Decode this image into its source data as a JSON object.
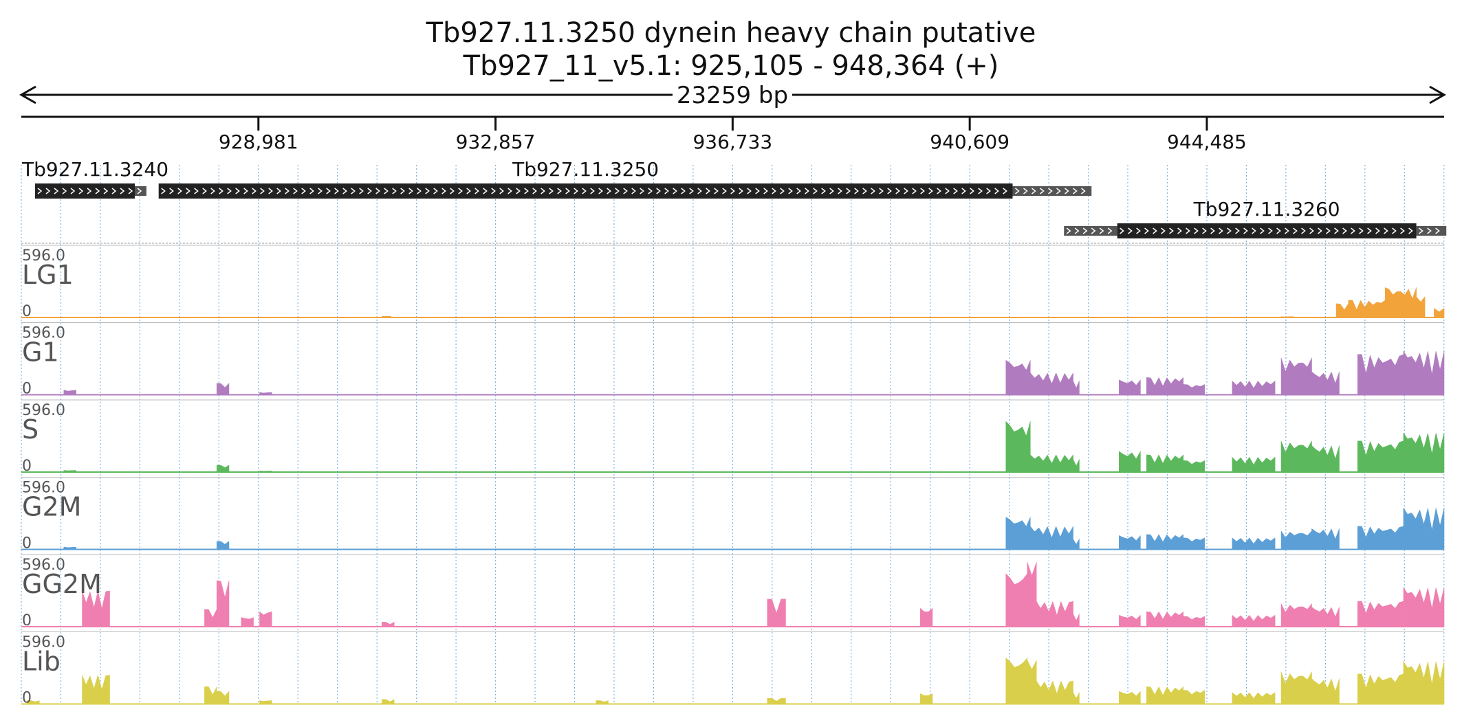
{
  "header": {
    "title_line1": "Tb927.11.3250  dynein heavy chain  putative",
    "title_line2": "Tb927_11_v5.1: 925,105 - 948,364 (+)",
    "span_label": "23259 bp"
  },
  "colors": {
    "LG1": "#f2a33a",
    "G1": "#b07cbf",
    "S": "#5cb85c",
    "G2M": "#5b9fd6",
    "GG2M": "#ef7fb0",
    "Lib": "#d9cf4a",
    "gene_body": "#222222",
    "utr": "#555555",
    "grid": "#7fb4e0"
  },
  "chart_data": {
    "type": "area",
    "genome": "Tb927_11_v5.1",
    "xlim": [
      925105,
      948364
    ],
    "x_ticks": [
      928981,
      932857,
      936733,
      940609,
      944485
    ],
    "x_tick_labels": [
      "928,981",
      "932,857",
      "936,733",
      "940,609",
      "944,485"
    ],
    "genes": [
      {
        "name": "Tb927.11.3240",
        "cds": [
          925330,
          926960
        ],
        "utr": [
          [
            926960,
            927150
          ]
        ],
        "row": 0
      },
      {
        "name": "Tb927.11.3250",
        "cds": [
          927350,
          941310
        ],
        "utr": [
          [
            941310,
            942600
          ]
        ],
        "row": 0
      },
      {
        "name": "Tb927.11.3260",
        "cds": [
          943020,
          947910
        ],
        "utr": [
          [
            942150,
            943020
          ],
          [
            947910,
            948400
          ]
        ],
        "row": 1
      }
    ],
    "tracks": [
      {
        "name": "LG1",
        "ymax_label": "596.0",
        "ymin_label": "0",
        "ylim": [
          0,
          596
        ],
        "regions": [
          [
            931000,
            931150,
            10
          ],
          [
            945700,
            945900,
            8
          ],
          [
            946600,
            946800,
            120
          ],
          [
            946800,
            947400,
            150
          ],
          [
            947400,
            947910,
            260
          ],
          [
            947910,
            948050,
            180
          ],
          [
            948200,
            948364,
            80
          ]
        ]
      },
      {
        "name": "G1",
        "ymax_label": "596.0",
        "ymin_label": "0",
        "ylim": [
          0,
          596
        ],
        "regions": [
          [
            925800,
            926000,
            40
          ],
          [
            928300,
            928500,
            100
          ],
          [
            929000,
            929200,
            20
          ],
          [
            941200,
            941600,
            300
          ],
          [
            941600,
            942300,
            190
          ],
          [
            942300,
            942400,
            120
          ],
          [
            943050,
            943400,
            130
          ],
          [
            943500,
            944100,
            150
          ],
          [
            944100,
            944450,
            90
          ],
          [
            944900,
            945600,
            120
          ],
          [
            945700,
            946200,
            320
          ],
          [
            946200,
            946650,
            200
          ],
          [
            946950,
            947700,
            350
          ],
          [
            947700,
            948364,
            380
          ]
        ]
      },
      {
        "name": "S",
        "ymax_label": "596.0",
        "ymin_label": "0",
        "ylim": [
          0,
          596
        ],
        "regions": [
          [
            925800,
            926000,
            15
          ],
          [
            928300,
            928500,
            60
          ],
          [
            929000,
            929200,
            10
          ],
          [
            941200,
            941600,
            440
          ],
          [
            941600,
            942300,
            150
          ],
          [
            942300,
            942400,
            110
          ],
          [
            943050,
            943400,
            180
          ],
          [
            943500,
            944100,
            150
          ],
          [
            944100,
            944450,
            100
          ],
          [
            944900,
            945600,
            130
          ],
          [
            945700,
            946200,
            270
          ],
          [
            946200,
            946650,
            230
          ],
          [
            946950,
            947700,
            270
          ],
          [
            947700,
            948364,
            340
          ]
        ]
      },
      {
        "name": "G2M",
        "ymax_label": "596.0",
        "ymin_label": "0",
        "ylim": [
          0,
          596
        ],
        "regions": [
          [
            925800,
            926000,
            20
          ],
          [
            928300,
            928500,
            70
          ],
          [
            941200,
            941600,
            280
          ],
          [
            941600,
            942300,
            200
          ],
          [
            942300,
            942400,
            90
          ],
          [
            943050,
            943400,
            120
          ],
          [
            943500,
            944100,
            130
          ],
          [
            944100,
            944450,
            100
          ],
          [
            944900,
            945600,
            100
          ],
          [
            945700,
            946200,
            160
          ],
          [
            946200,
            946650,
            180
          ],
          [
            946950,
            947700,
            200
          ],
          [
            947700,
            948364,
            360
          ]
        ]
      },
      {
        "name": "GG2M",
        "ymax_label": "596.0",
        "ymin_label": "0",
        "ylim": [
          0,
          596
        ],
        "regions": [
          [
            926100,
            926550,
            310
          ],
          [
            928100,
            928300,
            150
          ],
          [
            928300,
            928500,
            400
          ],
          [
            928700,
            928900,
            80
          ],
          [
            929000,
            929200,
            130
          ],
          [
            931000,
            931200,
            40
          ],
          [
            937300,
            937600,
            240
          ],
          [
            939800,
            940000,
            160
          ],
          [
            941200,
            941550,
            460
          ],
          [
            941550,
            941700,
            560
          ],
          [
            941700,
            942300,
            220
          ],
          [
            942300,
            942400,
            110
          ],
          [
            943050,
            943400,
            100
          ],
          [
            943500,
            944100,
            130
          ],
          [
            944100,
            944450,
            90
          ],
          [
            944900,
            945600,
            100
          ],
          [
            945700,
            946200,
            200
          ],
          [
            946200,
            946650,
            170
          ],
          [
            946950,
            947700,
            220
          ],
          [
            947700,
            948364,
            340
          ]
        ]
      },
      {
        "name": "Lib",
        "ymax_label": "596.0",
        "ymin_label": "0",
        "ylim": [
          0,
          596
        ],
        "regions": [
          [
            925200,
            925400,
            30
          ],
          [
            926100,
            926550,
            250
          ],
          [
            928100,
            928300,
            150
          ],
          [
            928300,
            928500,
            110
          ],
          [
            929000,
            929200,
            30
          ],
          [
            931000,
            931200,
            40
          ],
          [
            934500,
            934700,
            30
          ],
          [
            937300,
            937600,
            50
          ],
          [
            939800,
            940000,
            90
          ],
          [
            941200,
            941550,
            400
          ],
          [
            941550,
            941700,
            380
          ],
          [
            941700,
            942300,
            200
          ],
          [
            942300,
            942400,
            100
          ],
          [
            943050,
            943400,
            110
          ],
          [
            943500,
            944100,
            150
          ],
          [
            944100,
            944450,
            120
          ],
          [
            944900,
            945600,
            100
          ],
          [
            945700,
            946200,
            280
          ],
          [
            946200,
            946650,
            220
          ],
          [
            946950,
            947700,
            260
          ],
          [
            947700,
            948364,
            370
          ]
        ]
      }
    ]
  }
}
